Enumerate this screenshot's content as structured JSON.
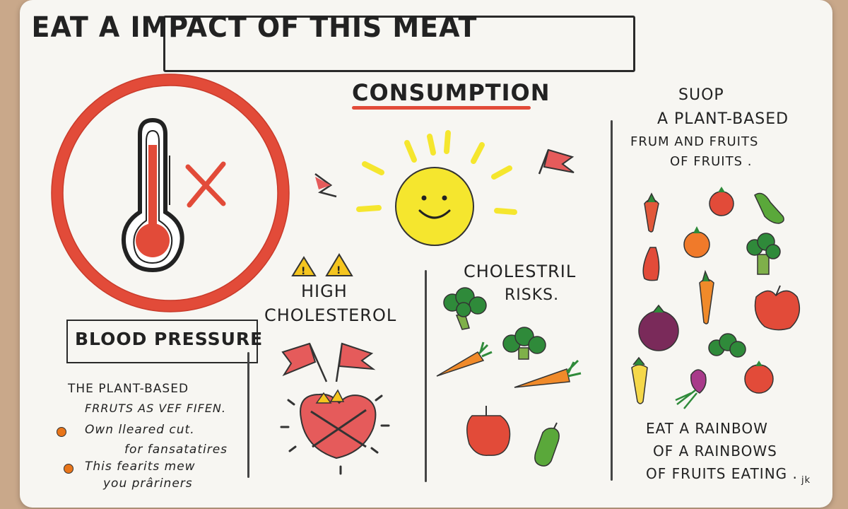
{
  "title": "EAT A IMPACT OF THIS MEAT",
  "subtitle": "CONSUMPTION",
  "blood_pressure": {
    "heading": "BLOOD PRESSURE",
    "lines": [
      "THE PLANT-BASED",
      "FRRUTS AS VEF FIFEN.",
      "Own lleared cut.",
      "for fansatatires",
      "This fearits mew",
      "you prâriners"
    ]
  },
  "high_cholesterol": {
    "line1": "HIGH",
    "line2": "CHOLESTEROL"
  },
  "cholesterol_risks": {
    "line1": "CHOLESTRIL",
    "line2": "RISKS."
  },
  "plant_based": {
    "line1": "SUOP",
    "line2": "A PLANT-BASED",
    "line3": "FRUM AND FRUITS",
    "line4": "OF FRUITS ."
  },
  "rainbow": {
    "line1": "EAT A RAINBOW",
    "line2": "OF A RAINBOWS",
    "line3": "OF FRUITS EATING .",
    "signature": "jk"
  },
  "colors": {
    "accent_red": "#e24b39",
    "sun_yellow": "#f5e62e",
    "bullet_orange": "#e8751a",
    "ink": "#222222"
  },
  "icons": [
    "thermometer-icon",
    "x-mark-icon",
    "sun-icon",
    "warning-icon",
    "flag-icon",
    "heart-icon",
    "broccoli-icon",
    "carrot-icon",
    "apple-icon",
    "tomato-icon",
    "pepper-icon",
    "cucumber-icon",
    "eggplant-icon",
    "radish-icon",
    "corn-icon",
    "pear-icon"
  ]
}
